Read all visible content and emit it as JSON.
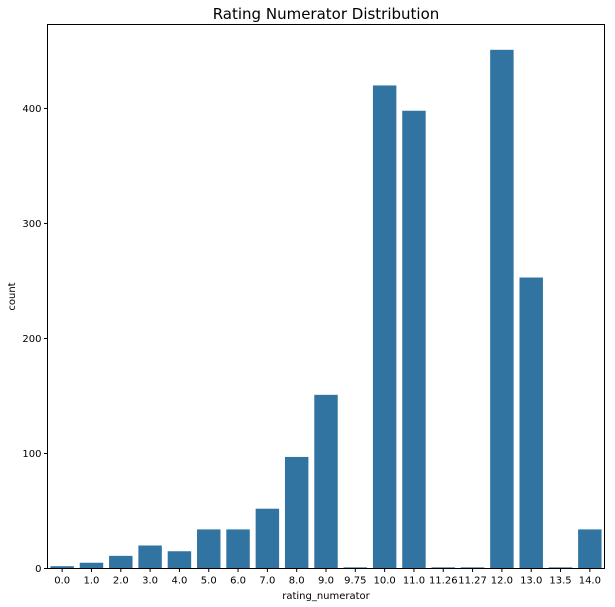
{
  "chart_data": {
    "type": "bar",
    "title": "Rating Numerator Distribution",
    "xlabel": "rating_numerator",
    "ylabel": "count",
    "categories": [
      "0.0",
      "1.0",
      "2.0",
      "3.0",
      "4.0",
      "5.0",
      "6.0",
      "7.0",
      "8.0",
      "9.0",
      "9.75",
      "10.0",
      "11.0",
      "11.26",
      "11.27",
      "12.0",
      "13.0",
      "13.5",
      "14.0"
    ],
    "values": [
      2,
      5,
      11,
      20,
      15,
      34,
      34,
      52,
      97,
      151,
      1,
      420,
      398,
      1,
      1,
      451,
      253,
      1,
      34
    ],
    "yticks": [
      0,
      100,
      200,
      300,
      400
    ],
    "ylim": [
      0,
      473
    ],
    "grid": false,
    "bar_color": "#3274a1"
  }
}
